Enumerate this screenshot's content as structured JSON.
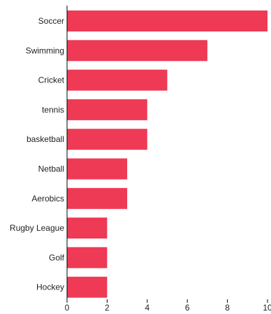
{
  "chart_data": {
    "type": "bar",
    "orientation": "horizontal",
    "categories": [
      "Soccer",
      "Swimming",
      "Cricket",
      "tennis",
      "basketball",
      "Netball",
      "Aerobics",
      "Rugby League",
      "Golf",
      "Hockey"
    ],
    "values": [
      10,
      7,
      5,
      4,
      4,
      3,
      3,
      2,
      2,
      2
    ],
    "xticks": [
      "0",
      "2",
      "4",
      "6",
      "8",
      "10"
    ],
    "xlim": [
      0,
      10
    ],
    "bar_color": "#ee3a55",
    "title": "",
    "xlabel": "",
    "ylabel": "",
    "grid": false
  }
}
